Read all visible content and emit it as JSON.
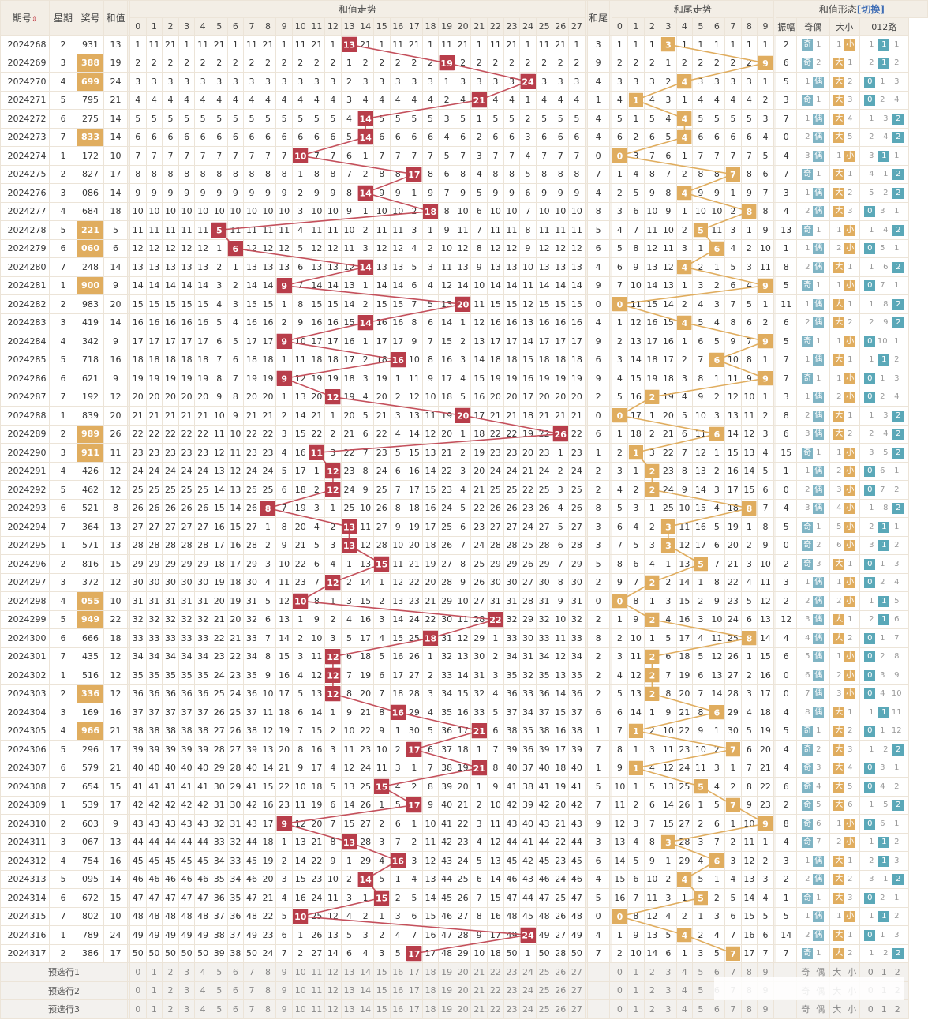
{
  "headers": {
    "period": "期号",
    "sort_arrow": "⇕",
    "weekday": "星期",
    "prize": "奖号",
    "sum": "和值",
    "sum_trend": "和值走势",
    "tail": "和尾",
    "tail_trend": "和尾走势",
    "shape": "和值形态",
    "switch": "[切换]",
    "amplitude": "振幅",
    "oddeven": "奇偶",
    "bigsmall": "大小",
    "route": "012路"
  },
  "sum_columns": [
    "0",
    "1",
    "2",
    "3",
    "4",
    "5",
    "6",
    "7",
    "8",
    "9",
    "10",
    "11",
    "12",
    "13",
    "14",
    "15",
    "16",
    "17",
    "18",
    "19",
    "20",
    "21",
    "22",
    "23",
    "24",
    "25",
    "26",
    "27"
  ],
  "tail_columns": [
    "0",
    "1",
    "2",
    "3",
    "4",
    "5",
    "6",
    "7",
    "8",
    "9"
  ],
  "tags": {
    "odd": "奇",
    "even": "偶",
    "big": "大",
    "small": "小",
    "r0": "0",
    "r1": "1",
    "r2": "2"
  },
  "rows": [
    {
      "period": "2024268",
      "weekday": "2",
      "prize": "931",
      "sum": "13",
      "hl": false,
      "amp": "2",
      "oe": "奇",
      "bs": "小",
      "r": "1"
    },
    {
      "period": "2024269",
      "weekday": "3",
      "prize": "388",
      "sum": "19",
      "hl": true,
      "amp": "6",
      "oe": "奇",
      "bs": "大",
      "r": "1"
    },
    {
      "period": "2024270",
      "weekday": "4",
      "prize": "699",
      "sum": "24",
      "hl": true,
      "amp": "5",
      "oe": "偶",
      "bs": "大",
      "r": "0"
    },
    {
      "period": "2024271",
      "weekday": "5",
      "prize": "795",
      "sum": "21",
      "hl": false,
      "amp": "3",
      "oe": "奇",
      "bs": "大",
      "r": "0"
    },
    {
      "period": "2024272",
      "weekday": "6",
      "prize": "275",
      "sum": "14",
      "hl": false,
      "amp": "7",
      "oe": "偶",
      "bs": "大",
      "r": "2"
    },
    {
      "period": "2024273",
      "weekday": "7",
      "prize": "833",
      "sum": "14",
      "hl": true,
      "amp": "0",
      "oe": "偶",
      "bs": "大",
      "r": "2"
    },
    {
      "period": "2024274",
      "weekday": "1",
      "prize": "172",
      "sum": "10",
      "hl": false,
      "amp": "4",
      "oe": "偶",
      "bs": "小",
      "r": "1"
    },
    {
      "period": "2024275",
      "weekday": "2",
      "prize": "827",
      "sum": "17",
      "hl": false,
      "amp": "7",
      "oe": "奇",
      "bs": "大",
      "r": "2"
    },
    {
      "period": "2024276",
      "weekday": "3",
      "prize": "086",
      "sum": "14",
      "hl": false,
      "amp": "3",
      "oe": "偶",
      "bs": "大",
      "r": "2"
    },
    {
      "period": "2024277",
      "weekday": "4",
      "prize": "684",
      "sum": "18",
      "hl": false,
      "amp": "4",
      "oe": "偶",
      "bs": "大",
      "r": "0"
    },
    {
      "period": "2024278",
      "weekday": "5",
      "prize": "221",
      "sum": "5",
      "hl": true,
      "amp": "13",
      "oe": "奇",
      "bs": "小",
      "r": "2"
    },
    {
      "period": "2024279",
      "weekday": "6",
      "prize": "060",
      "sum": "6",
      "hl": true,
      "amp": "1",
      "oe": "偶",
      "bs": "小",
      "r": "0"
    },
    {
      "period": "2024280",
      "weekday": "7",
      "prize": "248",
      "sum": "14",
      "hl": false,
      "amp": "8",
      "oe": "偶",
      "bs": "大",
      "r": "2"
    },
    {
      "period": "2024281",
      "weekday": "1",
      "prize": "900",
      "sum": "9",
      "hl": true,
      "amp": "5",
      "oe": "奇",
      "bs": "小",
      "r": "0"
    },
    {
      "period": "2024282",
      "weekday": "2",
      "prize": "983",
      "sum": "20",
      "hl": false,
      "amp": "11",
      "oe": "偶",
      "bs": "大",
      "r": "2"
    },
    {
      "period": "2024283",
      "weekday": "3",
      "prize": "419",
      "sum": "14",
      "hl": false,
      "amp": "6",
      "oe": "偶",
      "bs": "大",
      "r": "2"
    },
    {
      "period": "2024284",
      "weekday": "4",
      "prize": "342",
      "sum": "9",
      "hl": false,
      "amp": "5",
      "oe": "奇",
      "bs": "小",
      "r": "0"
    },
    {
      "period": "2024285",
      "weekday": "5",
      "prize": "718",
      "sum": "16",
      "hl": false,
      "amp": "7",
      "oe": "偶",
      "bs": "大",
      "r": "1"
    },
    {
      "period": "2024286",
      "weekday": "6",
      "prize": "621",
      "sum": "9",
      "hl": false,
      "amp": "7",
      "oe": "奇",
      "bs": "小",
      "r": "0"
    },
    {
      "period": "2024287",
      "weekday": "7",
      "prize": "192",
      "sum": "12",
      "hl": false,
      "amp": "3",
      "oe": "偶",
      "bs": "小",
      "r": "0"
    },
    {
      "period": "2024288",
      "weekday": "1",
      "prize": "839",
      "sum": "20",
      "hl": false,
      "amp": "8",
      "oe": "偶",
      "bs": "大",
      "r": "2"
    },
    {
      "period": "2024289",
      "weekday": "2",
      "prize": "989",
      "sum": "26",
      "hl": true,
      "amp": "6",
      "oe": "偶",
      "bs": "大",
      "r": "2"
    },
    {
      "period": "2024290",
      "weekday": "3",
      "prize": "911",
      "sum": "11",
      "hl": true,
      "amp": "15",
      "oe": "奇",
      "bs": "小",
      "r": "2"
    },
    {
      "period": "2024291",
      "weekday": "4",
      "prize": "426",
      "sum": "12",
      "hl": false,
      "amp": "1",
      "oe": "偶",
      "bs": "小",
      "r": "0"
    },
    {
      "period": "2024292",
      "weekday": "5",
      "prize": "462",
      "sum": "12",
      "hl": false,
      "amp": "0",
      "oe": "偶",
      "bs": "小",
      "r": "0"
    },
    {
      "period": "2024293",
      "weekday": "6",
      "prize": "521",
      "sum": "8",
      "hl": false,
      "amp": "4",
      "oe": "偶",
      "bs": "小",
      "r": "2"
    },
    {
      "period": "2024294",
      "weekday": "7",
      "prize": "364",
      "sum": "13",
      "hl": false,
      "amp": "5",
      "oe": "奇",
      "bs": "小",
      "r": "1"
    },
    {
      "period": "2024295",
      "weekday": "1",
      "prize": "571",
      "sum": "13",
      "hl": false,
      "amp": "0",
      "oe": "奇",
      "bs": "小",
      "r": "1"
    },
    {
      "period": "2024296",
      "weekday": "2",
      "prize": "816",
      "sum": "15",
      "hl": false,
      "amp": "2",
      "oe": "奇",
      "bs": "大",
      "r": "0"
    },
    {
      "period": "2024297",
      "weekday": "3",
      "prize": "372",
      "sum": "12",
      "hl": false,
      "amp": "3",
      "oe": "偶",
      "bs": "小",
      "r": "0"
    },
    {
      "period": "2024298",
      "weekday": "4",
      "prize": "055",
      "sum": "10",
      "hl": true,
      "amp": "2",
      "oe": "偶",
      "bs": "小",
      "r": "1"
    },
    {
      "period": "2024299",
      "weekday": "5",
      "prize": "949",
      "sum": "22",
      "hl": true,
      "amp": "12",
      "oe": "偶",
      "bs": "大",
      "r": "1"
    },
    {
      "period": "2024300",
      "weekday": "6",
      "prize": "666",
      "sum": "18",
      "hl": false,
      "amp": "4",
      "oe": "偶",
      "bs": "大",
      "r": "0"
    },
    {
      "period": "2024301",
      "weekday": "7",
      "prize": "435",
      "sum": "12",
      "hl": false,
      "amp": "6",
      "oe": "偶",
      "bs": "小",
      "r": "0"
    },
    {
      "period": "2024302",
      "weekday": "1",
      "prize": "516",
      "sum": "12",
      "hl": false,
      "amp": "0",
      "oe": "偶",
      "bs": "小",
      "r": "0"
    },
    {
      "period": "2024303",
      "weekday": "2",
      "prize": "336",
      "sum": "12",
      "hl": true,
      "amp": "0",
      "oe": "偶",
      "bs": "小",
      "r": "0"
    },
    {
      "period": "2024304",
      "weekday": "3",
      "prize": "169",
      "sum": "16",
      "hl": false,
      "amp": "4",
      "oe": "偶",
      "bs": "大",
      "r": "1"
    },
    {
      "period": "2024305",
      "weekday": "4",
      "prize": "966",
      "sum": "21",
      "hl": true,
      "amp": "5",
      "oe": "奇",
      "bs": "大",
      "r": "0"
    },
    {
      "period": "2024306",
      "weekday": "5",
      "prize": "296",
      "sum": "17",
      "hl": false,
      "amp": "4",
      "oe": "奇",
      "bs": "大",
      "r": "2"
    },
    {
      "period": "2024307",
      "weekday": "6",
      "prize": "579",
      "sum": "21",
      "hl": false,
      "amp": "4",
      "oe": "奇",
      "bs": "大",
      "r": "0"
    },
    {
      "period": "2024308",
      "weekday": "7",
      "prize": "654",
      "sum": "15",
      "hl": false,
      "amp": "6",
      "oe": "奇",
      "bs": "大",
      "r": "0"
    },
    {
      "period": "2024309",
      "weekday": "1",
      "prize": "539",
      "sum": "17",
      "hl": false,
      "amp": "2",
      "oe": "奇",
      "bs": "大",
      "r": "2"
    },
    {
      "period": "2024310",
      "weekday": "2",
      "prize": "603",
      "sum": "9",
      "hl": false,
      "amp": "8",
      "oe": "奇",
      "bs": "小",
      "r": "0"
    },
    {
      "period": "2024311",
      "weekday": "3",
      "prize": "067",
      "sum": "13",
      "hl": false,
      "amp": "4",
      "oe": "奇",
      "bs": "小",
      "r": "1"
    },
    {
      "period": "2024312",
      "weekday": "4",
      "prize": "754",
      "sum": "16",
      "hl": false,
      "amp": "3",
      "oe": "偶",
      "bs": "大",
      "r": "1"
    },
    {
      "period": "2024313",
      "weekday": "5",
      "prize": "095",
      "sum": "14",
      "hl": false,
      "amp": "2",
      "oe": "偶",
      "bs": "大",
      "r": "2"
    },
    {
      "period": "2024314",
      "weekday": "6",
      "prize": "672",
      "sum": "15",
      "hl": false,
      "amp": "1",
      "oe": "奇",
      "bs": "大",
      "r": "0"
    },
    {
      "period": "2024315",
      "weekday": "7",
      "prize": "802",
      "sum": "10",
      "hl": false,
      "amp": "5",
      "oe": "偶",
      "bs": "小",
      "r": "1"
    },
    {
      "period": "2024316",
      "weekday": "1",
      "prize": "789",
      "sum": "24",
      "hl": false,
      "amp": "14",
      "oe": "偶",
      "bs": "大",
      "r": "0"
    },
    {
      "period": "2024317",
      "weekday": "2",
      "prize": "386",
      "sum": "17",
      "hl": false,
      "amp": "7",
      "oe": "奇",
      "bs": "大",
      "r": "2"
    }
  ],
  "preselect": [
    "预选行1",
    "预选行2",
    "预选行3"
  ],
  "colors": {
    "sum_hit": "#b83d4a",
    "tail_hit": "#e0ad5f",
    "sum_line": "#c4505c",
    "tail_line": "#e0ad5f",
    "tag_blue": "#7fb4c4",
    "tag_gold": "#e0ad5f"
  }
}
